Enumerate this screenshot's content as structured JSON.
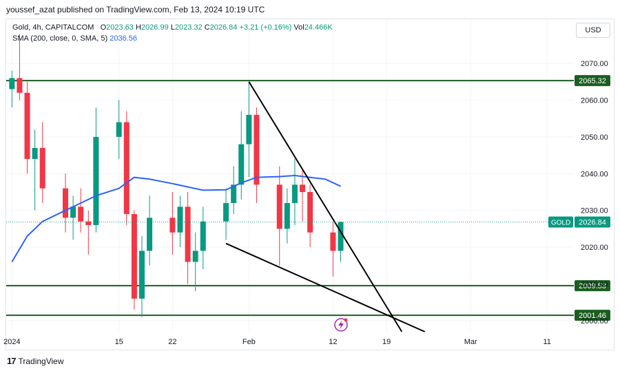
{
  "header": {
    "published_line": "youssef_azat published on TradingView.com, Feb 13, 2024 10:19 UTC"
  },
  "legend": {
    "symbol_line_prefix": "Gold, 4h, CAPITALCOM",
    "o_label": "O",
    "o_value": "2023.63",
    "h_label": "H",
    "h_value": "2026.99",
    "l_label": "L",
    "l_value": "2023.32",
    "c_label": "C",
    "c_value": "2026.84",
    "change": "+3.21 (+0.16%)",
    "vol_label": "Vol",
    "vol_value": "24.466K",
    "sma_label": "SMA (200, close, 0, SMA, 5)",
    "sma_value": "2036.56"
  },
  "currency_button": "USD",
  "footer": {
    "brand": "TradingView"
  },
  "colors": {
    "up": "#089981",
    "down": "#f23645",
    "sma": "#2962ff",
    "level": "#1b5e20",
    "trend": "#000000",
    "price_dotted": "#089981"
  },
  "chart_data": {
    "type": "candlestick",
    "title": "Gold, 4h, CAPITALCOM",
    "y_axis": {
      "ticks": [
        "2070.00",
        "2060.00",
        "2050.00",
        "2040.00",
        "2030.00",
        "2020.00",
        "2010.00",
        "2000.00"
      ],
      "range": [
        1997,
        2082
      ]
    },
    "x_axis": {
      "ticks": [
        "2024",
        "15",
        "22",
        "Feb",
        "12",
        "19",
        "Mar",
        "11"
      ]
    },
    "horizontal_levels": [
      {
        "value": 2065.32,
        "label": "2065.32"
      },
      {
        "value": 2009.53,
        "label": "2009.53"
      },
      {
        "value": 2001.46,
        "label": "2001.46"
      }
    ],
    "current_price": {
      "symbol": "GOLD",
      "value": 2026.84,
      "label": "2026.84"
    },
    "trendlines": [
      {
        "from": [
          "2024-02-01",
          2065.0
        ],
        "to": [
          "2024-02-21",
          1997.0
        ]
      },
      {
        "from": [
          "2024-01-29",
          2021.0
        ],
        "to": [
          "2024-02-24",
          1997.0
        ]
      }
    ],
    "sma": [
      [
        "2024-01-01",
        2016
      ],
      [
        "2024-01-03",
        2023
      ],
      [
        "2024-01-05",
        2027
      ],
      [
        "2024-01-08",
        2030
      ],
      [
        "2024-01-10",
        2032
      ],
      [
        "2024-01-12",
        2034
      ],
      [
        "2024-01-15",
        2036
      ],
      [
        "2024-01-17",
        2039
      ],
      [
        "2024-01-19",
        2038.5
      ],
      [
        "2024-01-22",
        2037.3
      ],
      [
        "2024-01-24",
        2036.4
      ],
      [
        "2024-01-26",
        2035.5
      ],
      [
        "2024-01-29",
        2035.6
      ],
      [
        "2024-01-31",
        2037.5
      ],
      [
        "2024-02-02",
        2039
      ],
      [
        "2024-02-05",
        2039.2
      ],
      [
        "2024-02-07",
        2039.5
      ],
      [
        "2024-02-09",
        2039
      ],
      [
        "2024-02-11",
        2038.5
      ],
      [
        "2024-02-13",
        2036.56
      ]
    ],
    "candles": [
      [
        "2024-01-01",
        2063,
        2068,
        2058,
        2066
      ],
      [
        "2024-01-02",
        2066,
        2078,
        2060,
        2062
      ],
      [
        "2024-01-03",
        2062,
        2065,
        2040,
        2044
      ],
      [
        "2024-01-04",
        2044,
        2052,
        2030,
        2047
      ],
      [
        "2024-01-05",
        2047,
        2054,
        2032,
        2036
      ],
      [
        "2024-01-08",
        2036,
        2040,
        2024,
        2028
      ],
      [
        "2024-01-09",
        2028,
        2034,
        2022,
        2031
      ],
      [
        "2024-01-10",
        2031,
        2036,
        2024,
        2027
      ],
      [
        "2024-01-11",
        2027,
        2030,
        2018,
        2026
      ],
      [
        "2024-01-12",
        2026,
        2058,
        2024,
        2050
      ],
      [
        "2024-01-15",
        2050,
        2060,
        2044,
        2054
      ],
      [
        "2024-01-16",
        2054,
        2057,
        2026,
        2029
      ],
      [
        "2024-01-17",
        2029,
        2030,
        2003,
        2006
      ],
      [
        "2024-01-18",
        2006,
        2023,
        2001,
        2019
      ],
      [
        "2024-01-19",
        2019,
        2034,
        2015,
        2028
      ],
      [
        "2024-01-22",
        2028,
        2035,
        2018,
        2024
      ],
      [
        "2024-01-23",
        2024,
        2034,
        2020,
        2031
      ],
      [
        "2024-01-24",
        2031,
        2035,
        2010,
        2016
      ],
      [
        "2024-01-25",
        2016,
        2024,
        2008,
        2019
      ],
      [
        "2024-01-26",
        2019,
        2031,
        2014,
        2027
      ],
      [
        "2024-01-29",
        2027,
        2036,
        2022,
        2032
      ],
      [
        "2024-01-30",
        2032,
        2042,
        2029,
        2037
      ],
      [
        "2024-01-31",
        2037,
        2057,
        2033,
        2048
      ],
      [
        "2024-02-01",
        2048,
        2065,
        2039,
        2056
      ],
      [
        "2024-02-02",
        2056,
        2058,
        2032,
        2037
      ],
      [
        "2024-02-05",
        2037,
        2042,
        2015,
        2025
      ],
      [
        "2024-02-06",
        2025,
        2036,
        2021,
        2032
      ],
      [
        "2024-02-07",
        2032,
        2044,
        2026,
        2037
      ],
      [
        "2024-02-08",
        2037,
        2041,
        2027,
        2035
      ],
      [
        "2024-02-09",
        2035,
        2037,
        2020,
        2024
      ],
      [
        "2024-02-12",
        2024,
        2027,
        2012,
        2019
      ],
      [
        "2024-02-13",
        2019,
        2027,
        2016,
        2026.84
      ]
    ]
  }
}
